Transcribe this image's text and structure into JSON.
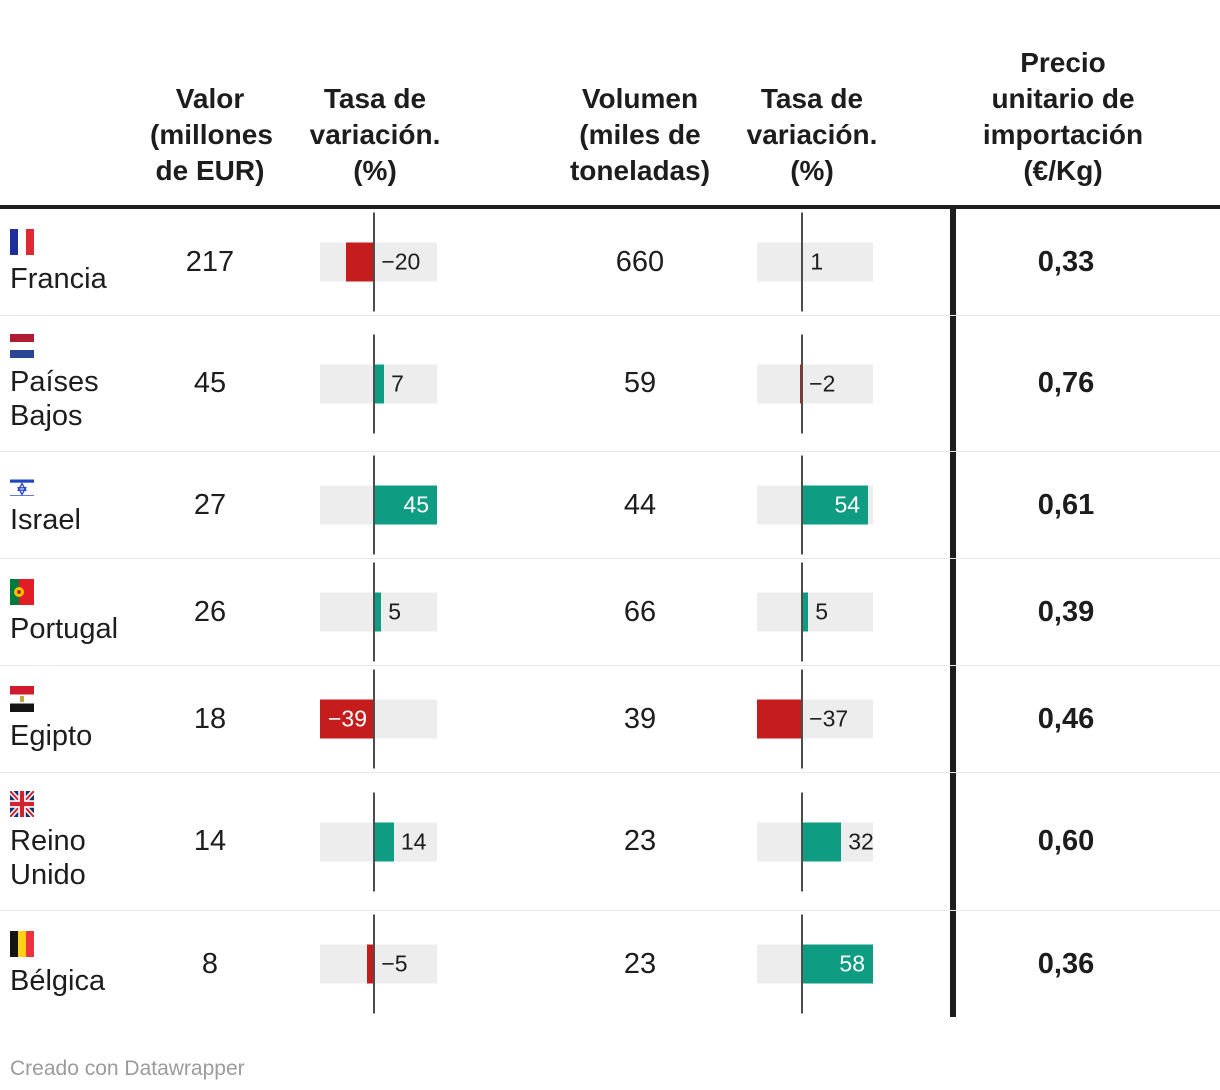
{
  "footer": {
    "text": "Creado con Datawrapper"
  },
  "colors": {
    "positive_bar": "#0e9c82",
    "negative_bar": "#c51d1d",
    "bar_background": "#ededed",
    "axis_line": "#4d4d4d",
    "divider": "#1d1d1d",
    "text": "#1d1d1d",
    "footer_text": "#9b9b9b"
  },
  "chart_data": {
    "type": "table",
    "columns": [
      {
        "id": "country",
        "label": ""
      },
      {
        "id": "valor",
        "label": "Valor\n(millones\nde EUR)"
      },
      {
        "id": "tasa_valor",
        "label": "Tasa de\nvariación.\n(%)"
      },
      {
        "id": "volumen",
        "label": "Volumen\n(miles de\ntoneladas)"
      },
      {
        "id": "tasa_volumen",
        "label": "Tasa de\nvariación.\n(%)"
      },
      {
        "id": "precio",
        "label": "Precio\nunitario de\nimportación\n(€/Kg)"
      }
    ],
    "bar_ranges": {
      "tasa_valor": [
        -39,
        45
      ],
      "tasa_volumen": [
        -37,
        58
      ]
    },
    "rows": [
      {
        "country": "Francia",
        "flag": "fr",
        "valor": 217,
        "tasa_valor": -20,
        "volumen": 660,
        "tasa_volumen": 1,
        "precio": "0,33"
      },
      {
        "country": "Países Bajos",
        "flag": "nl",
        "valor": 45,
        "tasa_valor": 7,
        "volumen": 59,
        "tasa_volumen": -2,
        "precio": "0,76"
      },
      {
        "country": "Israel",
        "flag": "il",
        "valor": 27,
        "tasa_valor": 45,
        "volumen": 44,
        "tasa_volumen": 54,
        "precio": "0,61"
      },
      {
        "country": "Portugal",
        "flag": "pt",
        "valor": 26,
        "tasa_valor": 5,
        "volumen": 66,
        "tasa_volumen": 5,
        "precio": "0,39"
      },
      {
        "country": "Egipto",
        "flag": "eg",
        "valor": 18,
        "tasa_valor": -39,
        "volumen": 39,
        "tasa_volumen": -37,
        "precio": "0,46"
      },
      {
        "country": "Reino Unido",
        "flag": "gb",
        "valor": 14,
        "tasa_valor": 14,
        "volumen": 23,
        "tasa_volumen": 32,
        "precio": "0,60"
      },
      {
        "country": "Bélgica",
        "flag": "be",
        "valor": 8,
        "tasa_valor": -5,
        "volumen": 23,
        "tasa_volumen": 58,
        "precio": "0,36"
      }
    ]
  }
}
